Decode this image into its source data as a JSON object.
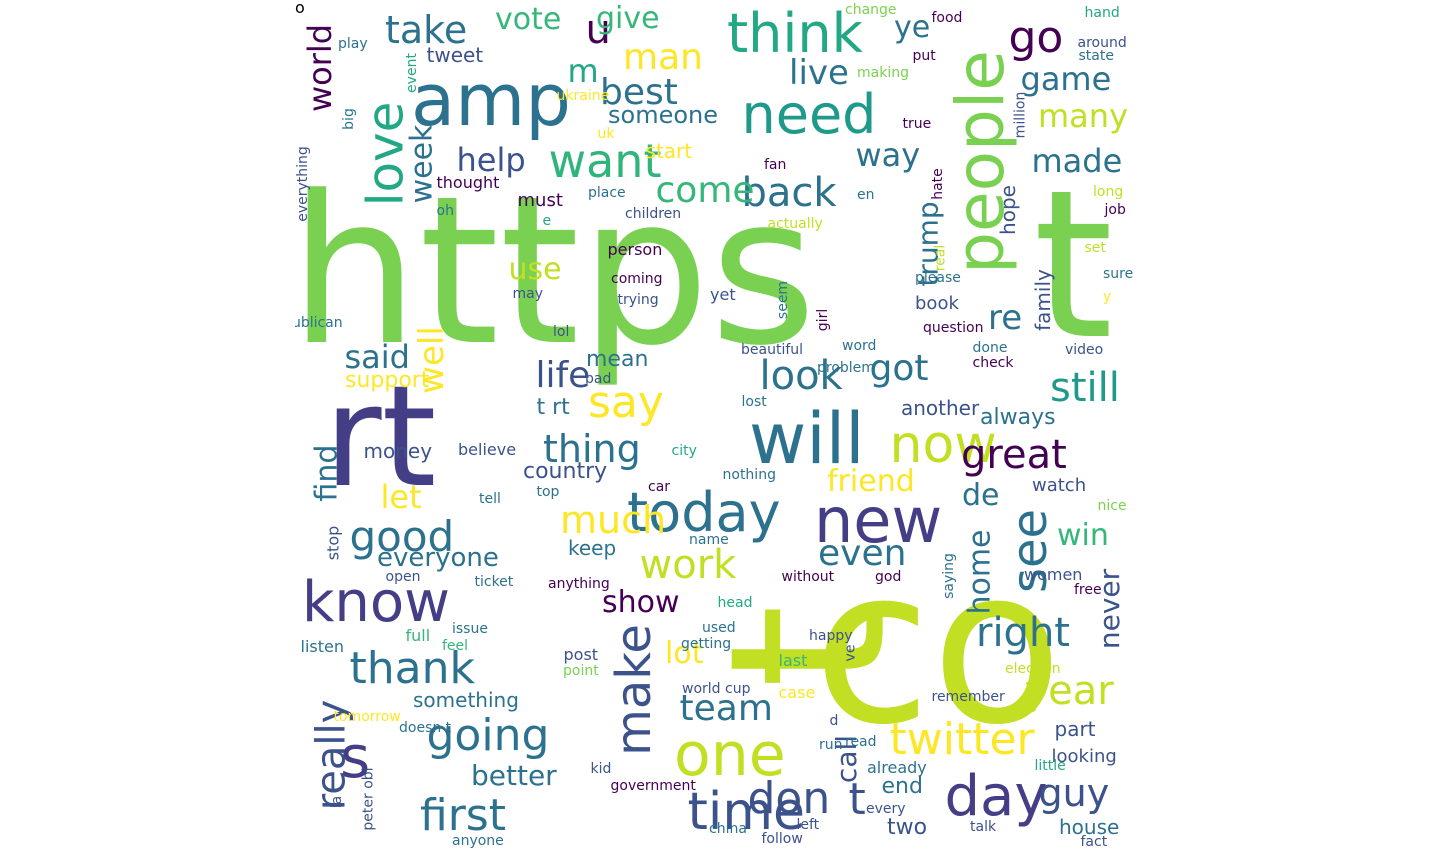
{
  "words": [
    {
      "text": "https",
      "color": "#7ad151"
    },
    {
      "text": "t",
      "color": "#7ad151"
    },
    {
      "text": "co",
      "color": "#c2df23"
    },
    {
      "text": "t",
      "color": "#c2df23"
    },
    {
      "text": "rt",
      "color": "#433e85"
    },
    {
      "text": "amp",
      "color": "#2c728e"
    },
    {
      "text": "people",
      "color": "#7ad151"
    },
    {
      "text": "will",
      "color": "#2c728e"
    },
    {
      "text": "s",
      "color": "#433e85"
    },
    {
      "text": "one",
      "color": "#c2df23"
    },
    {
      "text": "new",
      "color": "#433e85"
    },
    {
      "text": "know",
      "color": "#433e85"
    },
    {
      "text": "time",
      "color": "#3b528b"
    },
    {
      "text": "day",
      "color": "#433e85"
    },
    {
      "text": "today",
      "color": "#2c728e"
    },
    {
      "text": "now",
      "color": "#c2df23"
    },
    {
      "text": "need",
      "color": "#1f9a8a"
    },
    {
      "text": "think",
      "color": "#22a884"
    },
    {
      "text": "love",
      "color": "#22a884"
    },
    {
      "text": "want",
      "color": "#2fb47c"
    },
    {
      "text": "go",
      "color": "#440154"
    },
    {
      "text": "see",
      "color": "#2c728e"
    },
    {
      "text": "make",
      "color": "#3b528b"
    },
    {
      "text": "twitter",
      "color": "#fde725"
    },
    {
      "text": "thank",
      "color": "#2c728e"
    },
    {
      "text": "first",
      "color": "#2c728e"
    },
    {
      "text": "going",
      "color": "#2c728e"
    },
    {
      "text": "don",
      "color": "#3b528b"
    },
    {
      "text": "t",
      "color": "#3b528b"
    },
    {
      "text": "good",
      "color": "#2c728e"
    },
    {
      "text": "say",
      "color": "#fde725"
    },
    {
      "text": "great",
      "color": "#440154"
    },
    {
      "text": "year",
      "color": "#c2df23"
    },
    {
      "text": "right",
      "color": "#2c728e"
    },
    {
      "text": "still",
      "color": "#1f9a8a"
    },
    {
      "text": "back",
      "color": "#2c728e"
    },
    {
      "text": "come",
      "color": "#35b779"
    },
    {
      "text": "work",
      "color": "#c2df23"
    },
    {
      "text": "look",
      "color": "#2c728e"
    },
    {
      "text": "thing",
      "color": "#2c728e"
    },
    {
      "text": "really",
      "color": "#3b528b"
    },
    {
      "text": "much",
      "color": "#fde725"
    },
    {
      "text": "well",
      "color": "#fde725"
    },
    {
      "text": "life",
      "color": "#3b528b"
    },
    {
      "text": "guy",
      "color": "#3b528b"
    },
    {
      "text": "team",
      "color": "#2c728e"
    },
    {
      "text": "even",
      "color": "#2c728e"
    },
    {
      "text": "take",
      "color": "#2c728e"
    },
    {
      "text": "best",
      "color": "#2c728e"
    },
    {
      "text": "u",
      "color": "#440154"
    },
    {
      "text": "man",
      "color": "#fde725"
    },
    {
      "text": "vote",
      "color": "#35b779"
    },
    {
      "text": "give",
      "color": "#35b779"
    },
    {
      "text": "ye",
      "color": "#2c728e"
    },
    {
      "text": "live",
      "color": "#2c728e"
    },
    {
      "text": "m",
      "color": "#22a884"
    },
    {
      "text": "game",
      "color": "#2c728e"
    },
    {
      "text": "many",
      "color": "#c2df23"
    },
    {
      "text": "made",
      "color": "#2c728e"
    },
    {
      "text": "way",
      "color": "#2c728e"
    },
    {
      "text": "help",
      "color": "#3b528b"
    },
    {
      "text": "week",
      "color": "#2c728e"
    },
    {
      "text": "world",
      "color": "#440154"
    },
    {
      "text": "someone",
      "color": "#2c728e"
    },
    {
      "text": "trump",
      "color": "#2c728e"
    },
    {
      "text": "got",
      "color": "#2c728e"
    },
    {
      "text": "re",
      "color": "#2c728e"
    },
    {
      "text": "said",
      "color": "#2c728e"
    },
    {
      "text": "use",
      "color": "#c2df23"
    },
    {
      "text": "friend",
      "color": "#fde725"
    },
    {
      "text": "de",
      "color": "#2c728e"
    },
    {
      "text": "win",
      "color": "#35b779"
    },
    {
      "text": "lot",
      "color": "#fde725"
    },
    {
      "text": "let",
      "color": "#fde725"
    },
    {
      "text": "find",
      "color": "#2c728e"
    },
    {
      "text": "home",
      "color": "#2c728e"
    },
    {
      "text": "never",
      "color": "#3b528b"
    },
    {
      "text": "show",
      "color": "#440154"
    },
    {
      "text": "better",
      "color": "#2c728e"
    },
    {
      "text": "everyone",
      "color": "#2c728e"
    },
    {
      "text": "keep",
      "color": "#2c728e"
    },
    {
      "text": "call",
      "color": "#3b528b"
    },
    {
      "text": "end",
      "color": "#2c728e"
    },
    {
      "text": "two",
      "color": "#3b528b"
    },
    {
      "text": "house",
      "color": "#2c728e"
    },
    {
      "text": "looking",
      "color": "#3b528b"
    },
    {
      "text": "part",
      "color": "#3b528b"
    },
    {
      "text": "something",
      "color": "#2c728e"
    },
    {
      "text": "country",
      "color": "#3b528b"
    },
    {
      "text": "t rt",
      "color": "#2c728e"
    },
    {
      "text": "mean",
      "color": "#2c728e"
    },
    {
      "text": "support",
      "color": "#fde725"
    },
    {
      "text": "start",
      "color": "#fde725"
    },
    {
      "text": "hope",
      "color": "#3b528b"
    },
    {
      "text": "book",
      "color": "#3b528b"
    },
    {
      "text": "family",
      "color": "#3b528b"
    },
    {
      "text": "another",
      "color": "#3b528b"
    },
    {
      "text": "always",
      "color": "#2c728e"
    },
    {
      "text": "watch",
      "color": "#3b528b"
    },
    {
      "text": "money",
      "color": "#3b528b"
    },
    {
      "text": "tweet",
      "color": "#3b528b"
    },
    {
      "text": "thought",
      "color": "#440154"
    },
    {
      "text": "must",
      "color": "#440154"
    },
    {
      "text": "children",
      "color": "#3b528b"
    },
    {
      "text": "person",
      "color": "#440154"
    },
    {
      "text": "coming",
      "color": "#440154"
    },
    {
      "text": "trying",
      "color": "#3b528b"
    },
    {
      "text": "may",
      "color": "#3b528b"
    },
    {
      "text": "yet",
      "color": "#3b528b"
    },
    {
      "text": "lol",
      "color": "#3b528b"
    },
    {
      "text": "bad",
      "color": "#3b528b"
    },
    {
      "text": "believe",
      "color": "#3b528b"
    },
    {
      "text": "city",
      "color": "#22a884"
    },
    {
      "text": "top",
      "color": "#2c728e"
    },
    {
      "text": "nothing",
      "color": "#2c728e"
    },
    {
      "text": "name",
      "color": "#2c728e"
    },
    {
      "text": "without",
      "color": "#440154"
    },
    {
      "text": "women",
      "color": "#3b528b"
    },
    {
      "text": "free",
      "color": "#440154"
    },
    {
      "text": "open",
      "color": "#3b528b"
    },
    {
      "text": "ticket",
      "color": "#2c728e"
    },
    {
      "text": "anything",
      "color": "#440154"
    },
    {
      "text": "head",
      "color": "#22a884"
    },
    {
      "text": "used",
      "color": "#2c728e"
    },
    {
      "text": "getting",
      "color": "#2c728e"
    },
    {
      "text": "issue",
      "color": "#2c728e"
    },
    {
      "text": "feel",
      "color": "#35b779"
    },
    {
      "text": "full",
      "color": "#35b779"
    },
    {
      "text": "listen",
      "color": "#2c728e"
    },
    {
      "text": "post",
      "color": "#3b528b"
    },
    {
      "text": "point",
      "color": "#7ad151"
    },
    {
      "text": "last",
      "color": "#35b779"
    },
    {
      "text": "happy",
      "color": "#3b528b"
    },
    {
      "text": "ve",
      "color": "#3b528b"
    },
    {
      "text": "world cup",
      "color": "#3b528b"
    },
    {
      "text": "election",
      "color": "#c2df23"
    },
    {
      "text": "remember",
      "color": "#3b528b"
    },
    {
      "text": "case",
      "color": "#fde725"
    },
    {
      "text": "d",
      "color": "#3b528b"
    },
    {
      "text": "read",
      "color": "#2c728e"
    },
    {
      "text": "already",
      "color": "#2c728e"
    },
    {
      "text": "little",
      "color": "#22a884"
    },
    {
      "text": "kid",
      "color": "#3b528b"
    },
    {
      "text": "government",
      "color": "#440154"
    },
    {
      "text": "china",
      "color": "#2c728e"
    },
    {
      "text": "left",
      "color": "#3b528b"
    },
    {
      "text": "every",
      "color": "#3b528b"
    },
    {
      "text": "follow",
      "color": "#3b528b"
    },
    {
      "text": "talk",
      "color": "#3b528b"
    },
    {
      "text": "anyone",
      "color": "#2c728e"
    },
    {
      "text": "fact",
      "color": "#3b528b"
    },
    {
      "text": "tomorrow",
      "color": "#fde725"
    },
    {
      "text": "doesn t",
      "color": "#2c728e"
    },
    {
      "text": "la",
      "color": "#3b528b"
    },
    {
      "text": "peter obi",
      "color": "#3b528b"
    },
    {
      "text": "stop",
      "color": "#3b528b"
    },
    {
      "text": "run",
      "color": "#2c728e"
    },
    {
      "text": "tell",
      "color": "#2c728e"
    },
    {
      "text": "car",
      "color": "#440154"
    },
    {
      "text": "nice",
      "color": "#7ad151"
    },
    {
      "text": "god",
      "color": "#440154"
    },
    {
      "text": "saying",
      "color": "#2c728e"
    },
    {
      "text": "done",
      "color": "#2c728e"
    },
    {
      "text": "video",
      "color": "#3b528b"
    },
    {
      "text": "check",
      "color": "#440154"
    },
    {
      "text": "question",
      "color": "#440154"
    },
    {
      "text": "word",
      "color": "#2c728e"
    },
    {
      "text": "beautiful",
      "color": "#3b528b"
    },
    {
      "text": "problem",
      "color": "#2c728e"
    },
    {
      "text": "lost",
      "color": "#2c728e"
    },
    {
      "text": "girl",
      "color": "#440154"
    },
    {
      "text": "seem",
      "color": "#2c728e"
    },
    {
      "text": "actually",
      "color": "#c2df23"
    },
    {
      "text": "real",
      "color": "#c2df23"
    },
    {
      "text": "please",
      "color": "#2c728e"
    },
    {
      "text": "en",
      "color": "#2c728e"
    },
    {
      "text": "hate",
      "color": "#440154"
    },
    {
      "text": "fan",
      "color": "#440154"
    },
    {
      "text": "true",
      "color": "#440154"
    },
    {
      "text": "making",
      "color": "#7ad151"
    },
    {
      "text": "put",
      "color": "#440154"
    },
    {
      "text": "food",
      "color": "#440154"
    },
    {
      "text": "change",
      "color": "#7ad151"
    },
    {
      "text": "hand",
      "color": "#22a884"
    },
    {
      "text": "around",
      "color": "#3b528b"
    },
    {
      "text": "state",
      "color": "#2c728e"
    },
    {
      "text": "million",
      "color": "#3b528b"
    },
    {
      "text": "long",
      "color": "#c2df23"
    },
    {
      "text": "job",
      "color": "#440154"
    },
    {
      "text": "set",
      "color": "#c2df23"
    },
    {
      "text": "sure",
      "color": "#2c728e"
    },
    {
      "text": "y",
      "color": "#fde725"
    },
    {
      "text": "place",
      "color": "#2c728e"
    },
    {
      "text": "e",
      "color": "#22a884"
    },
    {
      "text": "oh",
      "color": "#2c728e"
    },
    {
      "text": "uk",
      "color": "#fde725"
    },
    {
      "text": "ukraine",
      "color": "#fde725"
    },
    {
      "text": "event",
      "color": "#22a884"
    },
    {
      "text": "play",
      "color": "#2c728e"
    },
    {
      "text": "big",
      "color": "#2c728e"
    },
    {
      "text": "everything",
      "color": "#3b528b"
    },
    {
      "text": "republican",
      "color": "#2c728e"
    },
    {
      "text": "o",
      "color": "#440154"
    }
  ]
}
